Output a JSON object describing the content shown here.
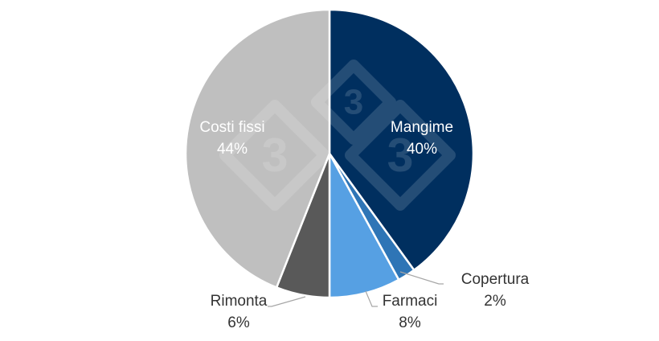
{
  "chart_data": {
    "type": "pie",
    "title": "",
    "start_angle_deg": 0,
    "direction": "clockwise",
    "slices": [
      {
        "label": "Mangime",
        "value": 40,
        "display": "40%",
        "color": "#002f5f",
        "label_color": "#ffffff"
      },
      {
        "label": "Copertura",
        "value": 2,
        "display": "2%",
        "color": "#2e75b6",
        "label_color": "#333333"
      },
      {
        "label": "Farmaci",
        "value": 8,
        "display": "8%",
        "color": "#56a0e3",
        "label_color": "#333333"
      },
      {
        "label": "Rimonta",
        "value": 6,
        "display": "6%",
        "color": "#595959",
        "label_color": "#333333"
      },
      {
        "label": "Costi fissi",
        "value": 44,
        "display": "44%",
        "color": "#bfbfbf",
        "label_color": "#ffffff"
      }
    ]
  },
  "watermark": {
    "glyph": "3"
  }
}
